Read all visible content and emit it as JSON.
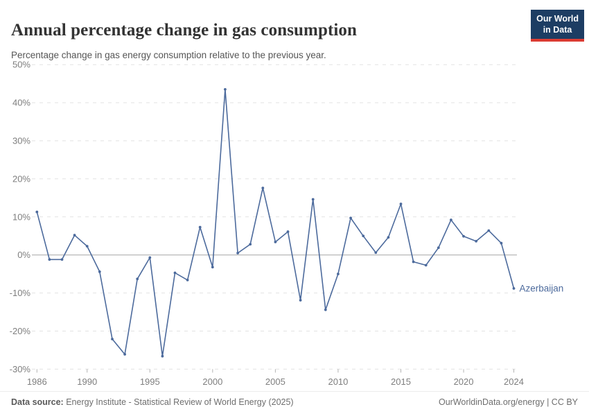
{
  "header": {
    "title": "Annual percentage change in gas consumption",
    "subtitle": "Percentage change in gas energy consumption relative to the previous year.",
    "logo": {
      "line1": "Our World",
      "line2": "in Data",
      "bg_color": "#1d3d63",
      "accent_color": "#dc3b32"
    }
  },
  "chart_data": {
    "type": "line",
    "title": "Annual percentage change in gas consumption",
    "xlabel": "",
    "ylabel": "",
    "x": [
      1986,
      1987,
      1988,
      1989,
      1990,
      1991,
      1992,
      1993,
      1994,
      1995,
      1996,
      1997,
      1998,
      1999,
      2000,
      2001,
      2002,
      2003,
      2004,
      2005,
      2006,
      2007,
      2008,
      2009,
      2010,
      2011,
      2012,
      2013,
      2014,
      2015,
      2016,
      2017,
      2018,
      2019,
      2020,
      2021,
      2022,
      2023,
      2024
    ],
    "series": [
      {
        "name": "Azerbaijan",
        "color": "#4C6A9C",
        "values": [
          11.3,
          -1.2,
          -1.2,
          5.2,
          2.3,
          -4.4,
          -22.1,
          -26.1,
          -6.3,
          -0.7,
          -26.6,
          -4.7,
          -6.6,
          7.3,
          -3.2,
          43.5,
          0.5,
          2.8,
          17.6,
          3.4,
          6.1,
          -11.9,
          14.6,
          -14.4,
          -5.0,
          9.7,
          5.0,
          0.6,
          4.6,
          13.4,
          -1.8,
          -2.7,
          1.9,
          9.2,
          4.9,
          3.6,
          6.4,
          3.1,
          -8.8
        ]
      }
    ],
    "ylim": [
      -30,
      50
    ],
    "xlim": [
      1986,
      2024
    ],
    "yticks": [
      {
        "value": 50,
        "label": "50%"
      },
      {
        "value": 40,
        "label": "40%"
      },
      {
        "value": 30,
        "label": "30%"
      },
      {
        "value": 20,
        "label": "20%"
      },
      {
        "value": 10,
        "label": "10%"
      },
      {
        "value": 0,
        "label": "0%"
      },
      {
        "value": -10,
        "label": "-10%"
      },
      {
        "value": -20,
        "label": "-20%"
      },
      {
        "value": -30,
        "label": "-30%"
      }
    ],
    "xticks": [
      "1986",
      "1990",
      "1995",
      "2000",
      "2005",
      "2010",
      "2015",
      "2020",
      "2024"
    ],
    "grid": "horizontal-dashed",
    "zero_line": true,
    "legend_position": "end-of-line-label",
    "entity_label": "Azerbaijan",
    "colors": {
      "line": "#4C6A9C",
      "gridline": "#e2e2e2",
      "zero_line": "#a6a6a6",
      "tick_mark": "#b3b3b3",
      "axis_text": "#7e7e7e"
    }
  },
  "footer": {
    "source_label": "Data source:",
    "source_text": " Energy Institute - Statistical Review of World Energy (2025)",
    "attribution": "OurWorldinData.org/energy | CC BY"
  }
}
